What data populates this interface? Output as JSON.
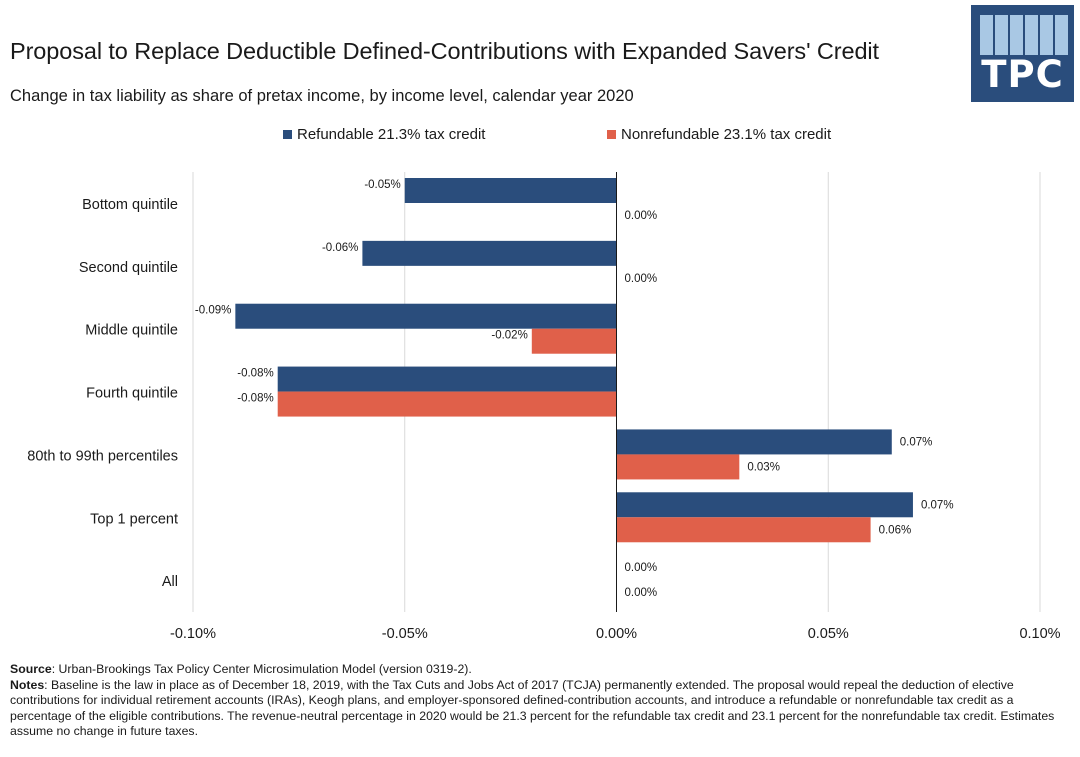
{
  "header": {
    "title": "Proposal to Replace Deductible Defined-Contributions with Expanded Savers' Credit",
    "subtitle": "Change in tax liability as share of pretax income, by income level, calendar year 2020",
    "logo_text": "TPC"
  },
  "colors": {
    "refundable": "#2a4d7c",
    "nonrefundable": "#e0604a",
    "logo_bg": "#2a4d7c",
    "logo_cells": "#a9c8e4",
    "grid": "#d9d9d9"
  },
  "chart_data": {
    "type": "bar",
    "orientation": "horizontal",
    "categories": [
      "Bottom quintile",
      "Second quintile",
      "Middle quintile",
      "Fourth quintile",
      "80th to 99th percentiles",
      "Top 1 percent",
      "All"
    ],
    "series": [
      {
        "name": "Refundable 21.3% tax credit",
        "values": [
          -0.05,
          -0.06,
          -0.09,
          -0.08,
          0.065,
          0.07,
          0.0
        ],
        "labels": [
          "-0.05%",
          "-0.06%",
          "-0.09%",
          "-0.08%",
          "0.07%",
          "0.07%",
          "0.00%"
        ]
      },
      {
        "name": "Nonrefundable 23.1% tax credit",
        "values": [
          0.0,
          0.0,
          -0.02,
          -0.08,
          0.029,
          0.06,
          0.0
        ],
        "labels": [
          "0.00%",
          "0.00%",
          "-0.02%",
          "-0.08%",
          "0.03%",
          "0.06%",
          "0.00%"
        ]
      }
    ],
    "xlim": [
      -0.1,
      0.1
    ],
    "xticks": [
      -0.1,
      -0.05,
      0.0,
      0.05,
      0.1
    ],
    "xtick_labels": [
      "-0.10%",
      "-0.05%",
      "0.00%",
      "0.05%",
      "0.10%"
    ],
    "grid": "vertical",
    "legend": "top-center"
  },
  "footer": {
    "source_label": "Source",
    "source_text": ": Urban-Brookings Tax Policy Center Microsimulation Model (version 0319-2).",
    "notes_label": "Notes",
    "notes_text": ": Baseline is the law in place as of December 18, 2019, with the Tax Cuts and Jobs Act of 2017 (TCJA) permanently extended. The proposal would repeal the deduction of elective contributions for individual retirement accounts (IRAs), Keogh plans, and employer-sponsored defined-contribution accounts, and introduce a refundable or nonrefundable tax credit as a percentage of the eligible contributions. The revenue-neutral percentage in 2020 would be 21.3 percent for the refundable tax credit and 23.1 percent for the nonrefundable tax credit. Estimates assume no change in future taxes."
  }
}
